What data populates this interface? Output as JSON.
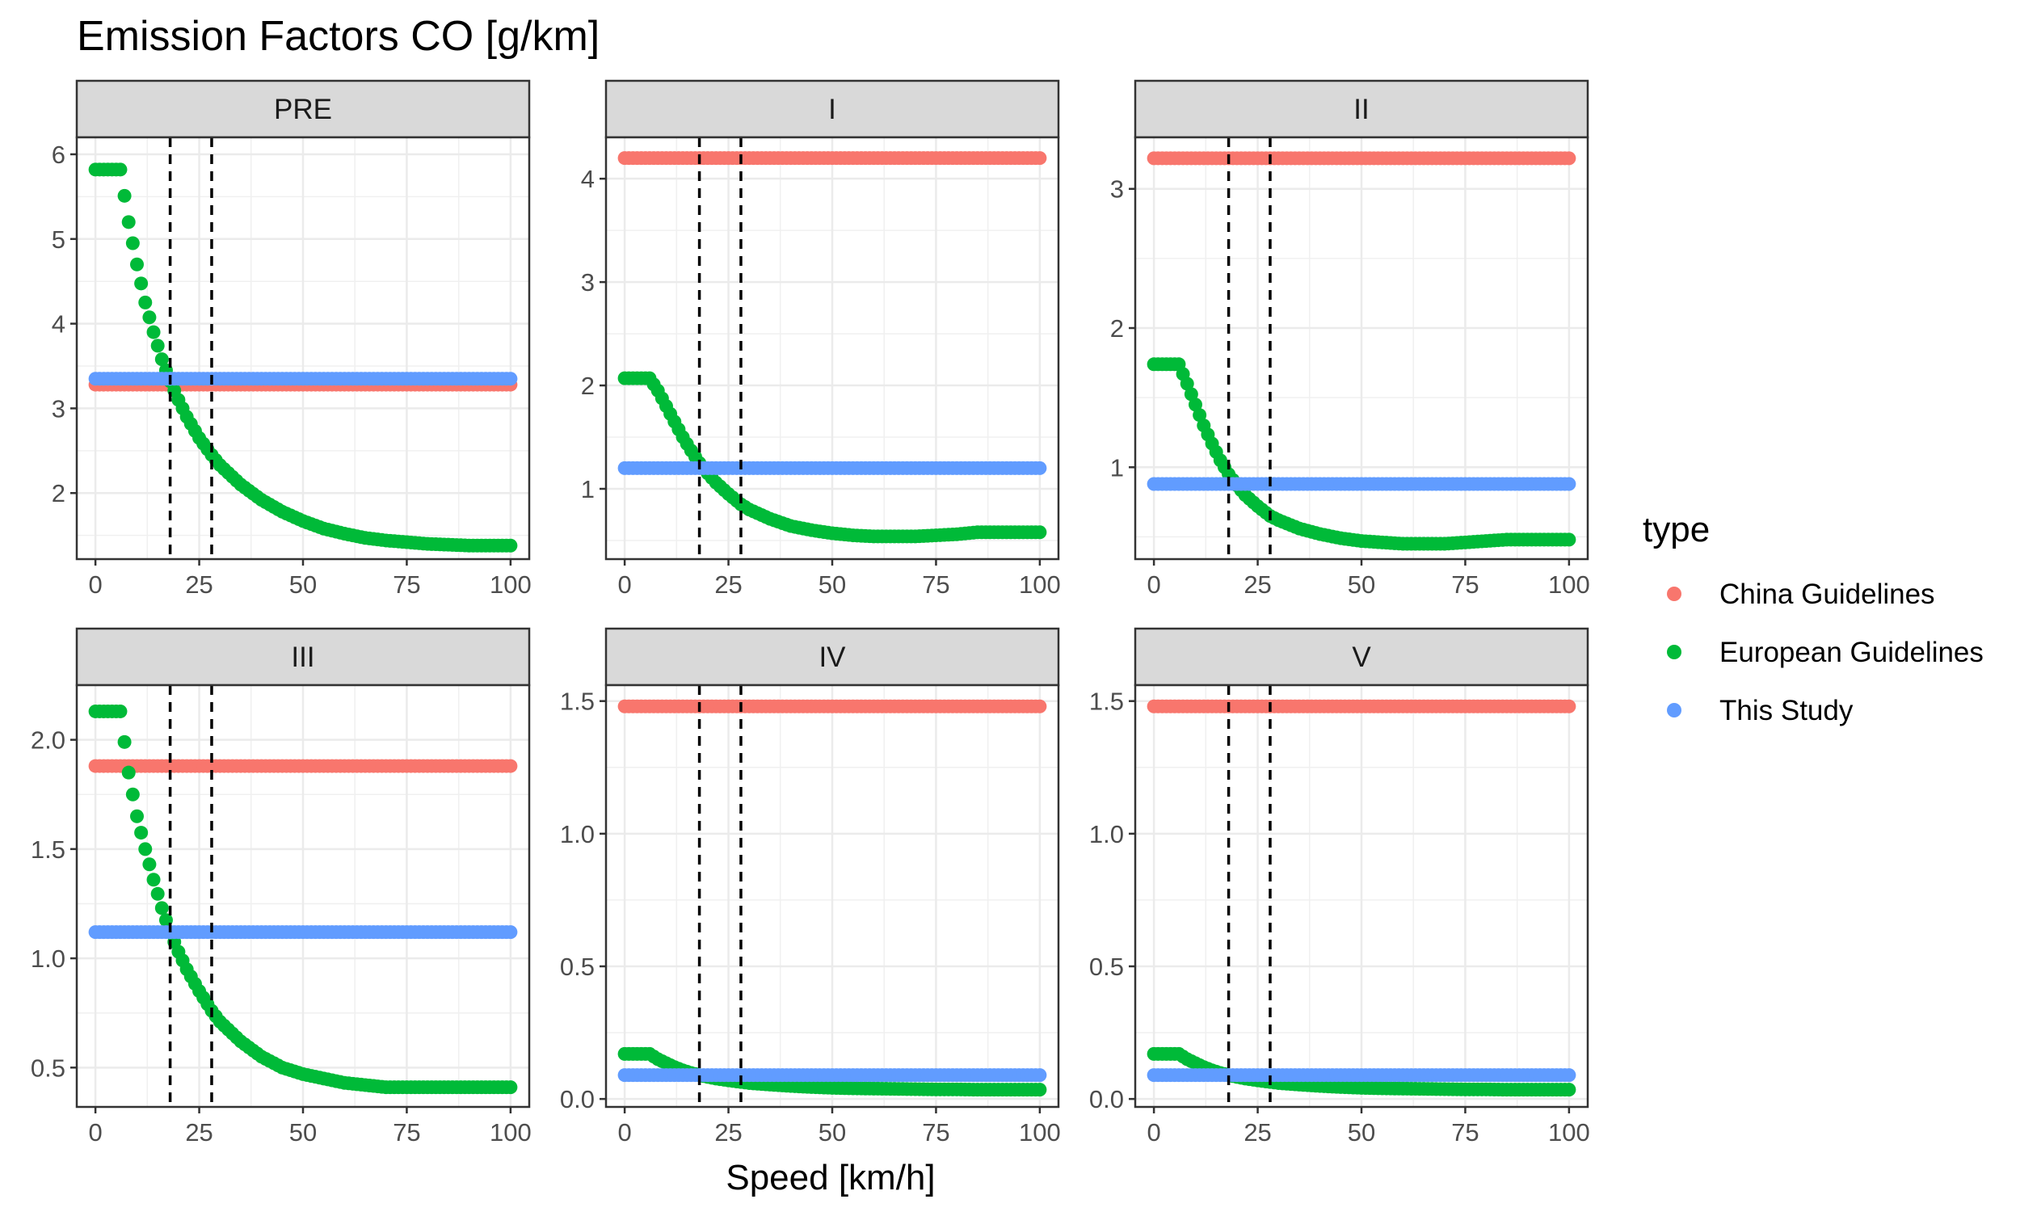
{
  "chart_data": {
    "type": "scatter",
    "title": "Emission Factors CO [g/km]",
    "xlabel": "Speed [km/h]",
    "ylabel": "",
    "xlim": [
      0,
      100
    ],
    "x_ticks": [
      0,
      25,
      50,
      75,
      100
    ],
    "grid": true,
    "reference_lines_x": [
      18,
      28
    ],
    "legend": {
      "title": "type",
      "placement": "right",
      "entries": [
        {
          "name": "China Guidelines",
          "color": "#F8766D"
        },
        {
          "name": "European Guidelines",
          "color": "#00BA38"
        },
        {
          "name": "This Study",
          "color": "#619CFF"
        }
      ]
    },
    "panels": [
      {
        "label": "PRE",
        "ylim": [
          1.22,
          6.2
        ],
        "y_ticks": [
          2,
          3,
          4,
          5,
          6
        ],
        "series": {
          "China Guidelines": {
            "x": [
              0,
              100
            ],
            "y": [
              3.28,
              3.28
            ]
          },
          "This Study": {
            "x": [
              0,
              100
            ],
            "y": [
              3.35,
              3.35
            ]
          },
          "European Guidelines": {
            "x": [
              0,
              2,
              4,
              6,
              8,
              10,
              12,
              14,
              16,
              18,
              20,
              22,
              25,
              28,
              30,
              35,
              40,
              45,
              50,
              55,
              60,
              65,
              70,
              75,
              80,
              85,
              90,
              95,
              100
            ],
            "y": [
              5.82,
              5.82,
              5.82,
              5.82,
              5.2,
              4.7,
              4.25,
              3.9,
              3.58,
              3.32,
              3.1,
              2.9,
              2.65,
              2.45,
              2.33,
              2.1,
              1.92,
              1.78,
              1.67,
              1.58,
              1.52,
              1.47,
              1.44,
              1.42,
              1.4,
              1.39,
              1.38,
              1.38,
              1.38
            ]
          }
        }
      },
      {
        "label": "I",
        "ylim": [
          0.32,
          4.4
        ],
        "y_ticks": [
          1,
          2,
          3,
          4
        ],
        "series": {
          "China Guidelines": {
            "x": [
              0,
              100
            ],
            "y": [
              4.2,
              4.2
            ]
          },
          "This Study": {
            "x": [
              0,
              100
            ],
            "y": [
              1.2,
              1.2
            ]
          },
          "European Guidelines": {
            "x": [
              0,
              2,
              4,
              6,
              8,
              10,
              12,
              14,
              16,
              18,
              20,
              22,
              25,
              28,
              30,
              35,
              40,
              45,
              50,
              55,
              60,
              65,
              70,
              75,
              80,
              85,
              90,
              95,
              100
            ],
            "y": [
              2.07,
              2.07,
              2.07,
              2.07,
              1.95,
              1.8,
              1.65,
              1.5,
              1.37,
              1.25,
              1.15,
              1.06,
              0.95,
              0.85,
              0.8,
              0.71,
              0.64,
              0.6,
              0.57,
              0.55,
              0.54,
              0.54,
              0.54,
              0.55,
              0.56,
              0.58,
              0.58,
              0.58,
              0.58
            ]
          }
        }
      },
      {
        "label": "II",
        "ylim": [
          0.34,
          3.37
        ],
        "y_ticks": [
          1,
          2,
          3
        ],
        "series": {
          "China Guidelines": {
            "x": [
              0,
              100
            ],
            "y": [
              3.22,
              3.22
            ]
          },
          "This Study": {
            "x": [
              0,
              100
            ],
            "y": [
              0.88,
              0.88
            ]
          },
          "European Guidelines": {
            "x": [
              0,
              2,
              4,
              6,
              8,
              10,
              12,
              14,
              16,
              18,
              20,
              22,
              25,
              28,
              30,
              35,
              40,
              45,
              50,
              55,
              60,
              65,
              70,
              75,
              80,
              85,
              90,
              95,
              100
            ],
            "y": [
              1.74,
              1.74,
              1.74,
              1.74,
              1.6,
              1.45,
              1.3,
              1.17,
              1.05,
              0.95,
              0.87,
              0.8,
              0.72,
              0.65,
              0.62,
              0.56,
              0.52,
              0.49,
              0.47,
              0.46,
              0.45,
              0.45,
              0.45,
              0.46,
              0.47,
              0.48,
              0.48,
              0.48,
              0.48
            ]
          }
        }
      },
      {
        "label": "III",
        "ylim": [
          0.32,
          2.25
        ],
        "y_ticks": [
          0.5,
          1.0,
          1.5,
          2.0
        ],
        "y_tick_labels": [
          "0.5",
          "1.0",
          "1.5",
          "2.0"
        ],
        "series": {
          "China Guidelines": {
            "x": [
              0,
              100
            ],
            "y": [
              1.88,
              1.88
            ]
          },
          "This Study": {
            "x": [
              0,
              100
            ],
            "y": [
              1.12,
              1.12
            ]
          },
          "European Guidelines": {
            "x": [
              0,
              2,
              4,
              6,
              8,
              10,
              12,
              14,
              16,
              18,
              20,
              22,
              25,
              28,
              30,
              35,
              40,
              45,
              50,
              55,
              60,
              65,
              70,
              75,
              80,
              85,
              90,
              95,
              100
            ],
            "y": [
              2.13,
              2.13,
              2.13,
              2.13,
              1.85,
              1.65,
              1.5,
              1.36,
              1.23,
              1.12,
              1.03,
              0.95,
              0.85,
              0.76,
              0.71,
              0.62,
              0.55,
              0.5,
              0.47,
              0.45,
              0.43,
              0.42,
              0.41,
              0.41,
              0.41,
              0.41,
              0.41,
              0.41,
              0.41
            ]
          }
        }
      },
      {
        "label": "IV",
        "ylim": [
          -0.03,
          1.56
        ],
        "y_ticks": [
          0.0,
          0.5,
          1.0,
          1.5
        ],
        "y_tick_labels": [
          "0.0",
          "0.5",
          "1.0",
          "1.5"
        ],
        "series": {
          "China Guidelines": {
            "x": [
              0,
              100
            ],
            "y": [
              1.48,
              1.48
            ]
          },
          "This Study": {
            "x": [
              0,
              100
            ],
            "y": [
              0.09,
              0.09
            ]
          },
          "European Guidelines": {
            "x": [
              0,
              2,
              4,
              6,
              8,
              10,
              12,
              14,
              16,
              18,
              20,
              22,
              25,
              28,
              30,
              35,
              40,
              45,
              50,
              55,
              60,
              65,
              70,
              75,
              80,
              85,
              90,
              95,
              100
            ],
            "y": [
              0.17,
              0.17,
              0.17,
              0.17,
              0.15,
              0.135,
              0.12,
              0.108,
              0.098,
              0.09,
              0.083,
              0.077,
              0.07,
              0.064,
              0.06,
              0.054,
              0.049,
              0.045,
              0.042,
              0.04,
              0.039,
              0.038,
              0.037,
              0.036,
              0.036,
              0.035,
              0.035,
              0.035,
              0.035
            ]
          }
        }
      },
      {
        "label": "V",
        "ylim": [
          -0.03,
          1.56
        ],
        "y_ticks": [
          0.0,
          0.5,
          1.0,
          1.5
        ],
        "y_tick_labels": [
          "0.0",
          "0.5",
          "1.0",
          "1.5"
        ],
        "series": {
          "China Guidelines": {
            "x": [
              0,
              100
            ],
            "y": [
              1.48,
              1.48
            ]
          },
          "This Study": {
            "x": [
              0,
              100
            ],
            "y": [
              0.09,
              0.09
            ]
          },
          "European Guidelines": {
            "x": [
              0,
              2,
              4,
              6,
              8,
              10,
              12,
              14,
              16,
              18,
              20,
              22,
              25,
              28,
              30,
              35,
              40,
              45,
              50,
              55,
              60,
              65,
              70,
              75,
              80,
              85,
              90,
              95,
              100
            ],
            "y": [
              0.17,
              0.17,
              0.17,
              0.17,
              0.15,
              0.135,
              0.12,
              0.108,
              0.098,
              0.09,
              0.083,
              0.077,
              0.07,
              0.064,
              0.06,
              0.054,
              0.049,
              0.045,
              0.042,
              0.04,
              0.039,
              0.038,
              0.037,
              0.036,
              0.036,
              0.035,
              0.035,
              0.035,
              0.035
            ]
          }
        }
      }
    ]
  }
}
